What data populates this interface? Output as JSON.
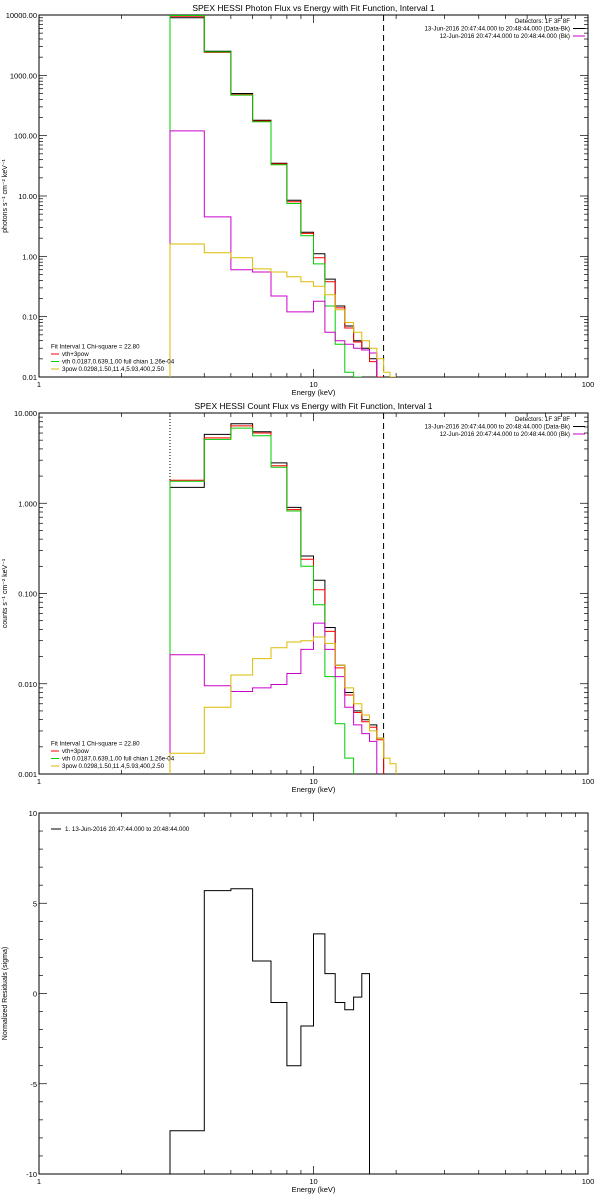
{
  "chart_data": [
    {
      "type": "line",
      "title": "SPEX HESSI Photon Flux vs Energy with Fit Function, Interval 1",
      "xlabel": "Energy (keV)",
      "ylabel": "photons s⁻¹ cm⁻² keV⁻¹",
      "xlim": [
        1,
        100
      ],
      "ylim": [
        0.01,
        10000
      ],
      "xscale": "log",
      "yscale": "log",
      "x_ticks": [
        1,
        10,
        100
      ],
      "y_ticks": [
        0.01,
        0.1,
        1,
        10,
        100,
        1000,
        10000
      ],
      "x_tick_labels": [
        "1",
        "10",
        "100"
      ],
      "y_tick_labels": [
        "0.01",
        "0.10",
        "1.00",
        "10.00",
        "100.00",
        "1000.00",
        "10000.00"
      ],
      "vlines": [
        {
          "x": 3.0,
          "style": "dotted"
        },
        {
          "x": 18.0,
          "style": "dashed"
        }
      ],
      "legend_top_right": [
        {
          "text": "Detectors: 1F 3F 8F",
          "color": "#000000",
          "swatch": false
        },
        {
          "text": "13-Jun-2016 20:47:44.000 to 20:48:44.000 (Data-Bk)",
          "color": "#000000",
          "swatch": true
        },
        {
          "text": "12-Jun-2016 20:47:44.000 to 20:48:44.000 (Bk)",
          "color": "#cc00cc",
          "swatch": true
        }
      ],
      "legend_bottom_left": [
        {
          "text": "Fit Interval 1    Chi-square = 22.80",
          "color": "#000000",
          "swatch": false
        },
        {
          "text": "vth+3pow",
          "color": "#ff0000",
          "swatch": true
        },
        {
          "text": "vth 0.0187,0.639,1.00  full chian 1.26e-04",
          "color": "#00cc00",
          "swatch": true
        },
        {
          "text": "3pow 0.0298,1.50,11.4,5.93,400,2.50",
          "color": "#ddbb00",
          "swatch": true
        }
      ],
      "series": [
        {
          "color": "#000000",
          "edges": [
            3.0,
            4.0,
            5.0,
            6.0,
            7.0,
            8.0,
            9.0,
            10.0,
            11.0,
            12.0,
            13.0,
            14.0,
            15.0,
            16.0,
            17.0,
            18.0
          ],
          "values": [
            9000,
            2500,
            500,
            180,
            35,
            8.5,
            2.5,
            1.1,
            0.42,
            0.15,
            0.07,
            0.04,
            0.03,
            0.02,
            0.01
          ]
        },
        {
          "color": "#ff0000",
          "edges": [
            3.0,
            4.0,
            5.0,
            6.0,
            7.0,
            8.0,
            9.0,
            10.0,
            11.0,
            12.0,
            13.0,
            14.0,
            15.0,
            16.0,
            17.0,
            18.0
          ],
          "values": [
            9500,
            2400,
            480,
            175,
            34,
            8,
            2.4,
            0.95,
            0.38,
            0.14,
            0.065,
            0.038,
            0.028,
            0.018,
            0.01
          ]
        },
        {
          "color": "#00cc00",
          "edges": [
            3.0,
            4.0,
            5.0,
            6.0,
            7.0,
            8.0,
            9.0,
            10.0,
            11.0,
            12.0,
            13.0,
            14.0,
            15.0
          ],
          "values": [
            9800,
            2450,
            470,
            170,
            33,
            7.5,
            2.2,
            0.75,
            0.15,
            0.035,
            0.012,
            0.01
          ]
        },
        {
          "color": "#cc00cc",
          "edges": [
            3.0,
            4.0,
            5.0,
            6.0,
            7.0,
            8.0,
            9.0,
            10.0,
            11.0,
            12.0,
            13.0,
            14.0,
            15.0,
            16.0,
            17.0
          ],
          "values": [
            120,
            4.5,
            0.6,
            0.55,
            0.22,
            0.12,
            0.12,
            0.18,
            0.055,
            0.04,
            0.035,
            0.03,
            0.028,
            0.025
          ]
        },
        {
          "color": "#ddbb00",
          "edges": [
            3.0,
            4.0,
            5.0,
            6.0,
            7.0,
            8.0,
            9.0,
            10.0,
            11.0,
            12.0,
            13.0,
            14.0,
            15.0,
            16.0,
            17.0,
            18.0,
            19.0,
            20.0
          ],
          "values": [
            1.6,
            1.15,
            0.95,
            0.62,
            0.55,
            0.46,
            0.38,
            0.32,
            0.23,
            0.13,
            0.08,
            0.055,
            0.04,
            0.03,
            0.02,
            0.012,
            0.01
          ]
        }
      ]
    },
    {
      "type": "line",
      "title": "SPEX HESSI Count Flux vs Energy with Fit Function, Interval 1",
      "xlabel": "Energy (keV)",
      "ylabel": "counts s⁻¹ cm⁻² keV⁻¹",
      "xlim": [
        1,
        100
      ],
      "ylim": [
        0.001,
        10
      ],
      "xscale": "log",
      "yscale": "log",
      "x_ticks": [
        1,
        10,
        100
      ],
      "y_ticks": [
        0.001,
        0.01,
        0.1,
        1,
        10
      ],
      "x_tick_labels": [
        "1",
        "10",
        "100"
      ],
      "y_tick_labels": [
        "0.001",
        "0.010",
        "0.100",
        "1.000",
        "10.000"
      ],
      "vlines": [
        {
          "x": 3.0,
          "style": "dotted"
        },
        {
          "x": 18.0,
          "style": "dashed"
        }
      ],
      "legend_top_right": [
        {
          "text": "Detectors: 1F 3F 8F",
          "color": "#000000",
          "swatch": false
        },
        {
          "text": "13-Jun-2016 20:47:44.000 to 20:48:44.000 (Data-Bk)",
          "color": "#000000",
          "swatch": true
        },
        {
          "text": "12-Jun-2016 20:47:44.000 to 20:48:44.000 (Bk)",
          "color": "#cc00cc",
          "swatch": true
        }
      ],
      "legend_bottom_left": [
        {
          "text": "Fit Interval 1    Chi-square = 22.80",
          "color": "#000000",
          "swatch": false
        },
        {
          "text": "vth+3pow",
          "color": "#ff0000",
          "swatch": true
        },
        {
          "text": "vth 0.0187,0.639,1.00  full chian 1.26e-04",
          "color": "#00cc00",
          "swatch": true
        },
        {
          "text": "3pow 0.0298,1.50,11.4,5.93,400,2.50",
          "color": "#ddbb00",
          "swatch": true
        }
      ],
      "series": [
        {
          "color": "#000000",
          "edges": [
            3.0,
            4.0,
            5.0,
            6.0,
            7.0,
            8.0,
            9.0,
            10.0,
            11.0,
            12.0,
            13.0,
            14.0,
            15.0,
            16.0,
            17.0,
            18.0
          ],
          "values": [
            1.5,
            5.8,
            7.6,
            6.2,
            2.8,
            0.9,
            0.26,
            0.14,
            0.042,
            0.016,
            0.008,
            0.005,
            0.004,
            0.0035,
            0.0025
          ]
        },
        {
          "color": "#ff0000",
          "edges": [
            3.0,
            4.0,
            5.0,
            6.0,
            7.0,
            8.0,
            9.0,
            10.0,
            11.0,
            12.0,
            13.0,
            14.0,
            15.0,
            16.0,
            17.0,
            18.0
          ],
          "values": [
            1.8,
            5.3,
            7.2,
            6.0,
            2.6,
            0.85,
            0.24,
            0.11,
            0.038,
            0.015,
            0.0075,
            0.0048,
            0.0038,
            0.0033,
            0.0024
          ]
        },
        {
          "color": "#00cc00",
          "edges": [
            3.0,
            4.0,
            5.0,
            6.0,
            7.0,
            8.0,
            9.0,
            10.0,
            11.0,
            12.0,
            13.0,
            14.0
          ],
          "values": [
            1.75,
            5.1,
            6.8,
            5.6,
            2.5,
            0.82,
            0.2,
            0.075,
            0.012,
            0.0036,
            0.0015
          ]
        },
        {
          "color": "#cc00cc",
          "edges": [
            3.0,
            4.0,
            5.0,
            6.0,
            7.0,
            8.0,
            9.0,
            10.0,
            11.0,
            12.0,
            13.0,
            14.0,
            15.0,
            16.0,
            17.0
          ],
          "values": [
            0.021,
            0.0095,
            0.0082,
            0.009,
            0.0098,
            0.013,
            0.024,
            0.047,
            0.024,
            0.012,
            0.0055,
            0.0035,
            0.0028,
            0.0023
          ]
        },
        {
          "color": "#ddbb00",
          "edges": [
            3.0,
            4.0,
            5.0,
            6.0,
            7.0,
            8.0,
            9.0,
            10.0,
            11.0,
            12.0,
            13.0,
            14.0,
            15.0,
            16.0,
            17.0,
            18.0,
            19.0,
            20.0
          ],
          "values": [
            0.0017,
            0.0055,
            0.0125,
            0.019,
            0.025,
            0.029,
            0.03,
            0.033,
            0.028,
            0.016,
            0.009,
            0.006,
            0.0045,
            0.003,
            0.0025,
            0.0015,
            0.0013
          ]
        }
      ]
    },
    {
      "type": "line",
      "title": "",
      "xlabel": "Energy (keV)",
      "ylabel": "Normalized Residuals (sigma)",
      "xlim": [
        1,
        100
      ],
      "ylim": [
        -10,
        10
      ],
      "xscale": "log",
      "yscale": "linear",
      "x_ticks": [
        1,
        10,
        100
      ],
      "y_ticks": [
        -10,
        -5,
        0,
        5,
        10
      ],
      "x_tick_labels": [
        "1",
        "10",
        "100"
      ],
      "y_tick_labels": [
        "-10",
        "-5",
        "0",
        "5",
        "10"
      ],
      "vlines": [],
      "legend_top_left": [
        {
          "text": "1. 13-Jun-2016 20:47:44.000 to 20:48:44.000",
          "color": "#000000",
          "swatch": true
        }
      ],
      "series": [
        {
          "color": "#000000",
          "edges": [
            3.0,
            4.0,
            5.0,
            6.0,
            7.0,
            8.0,
            9.0,
            10.0,
            11.0,
            12.0,
            13.0,
            14.0,
            15.0,
            16.0,
            17.0,
            18.0
          ],
          "values": [
            -7.6,
            5.7,
            5.8,
            1.8,
            -0.5,
            -4.0,
            -1.8,
            3.3,
            1.1,
            -0.5,
            -0.9,
            -0.2,
            1.1,
            -10,
            -10
          ]
        }
      ]
    }
  ]
}
